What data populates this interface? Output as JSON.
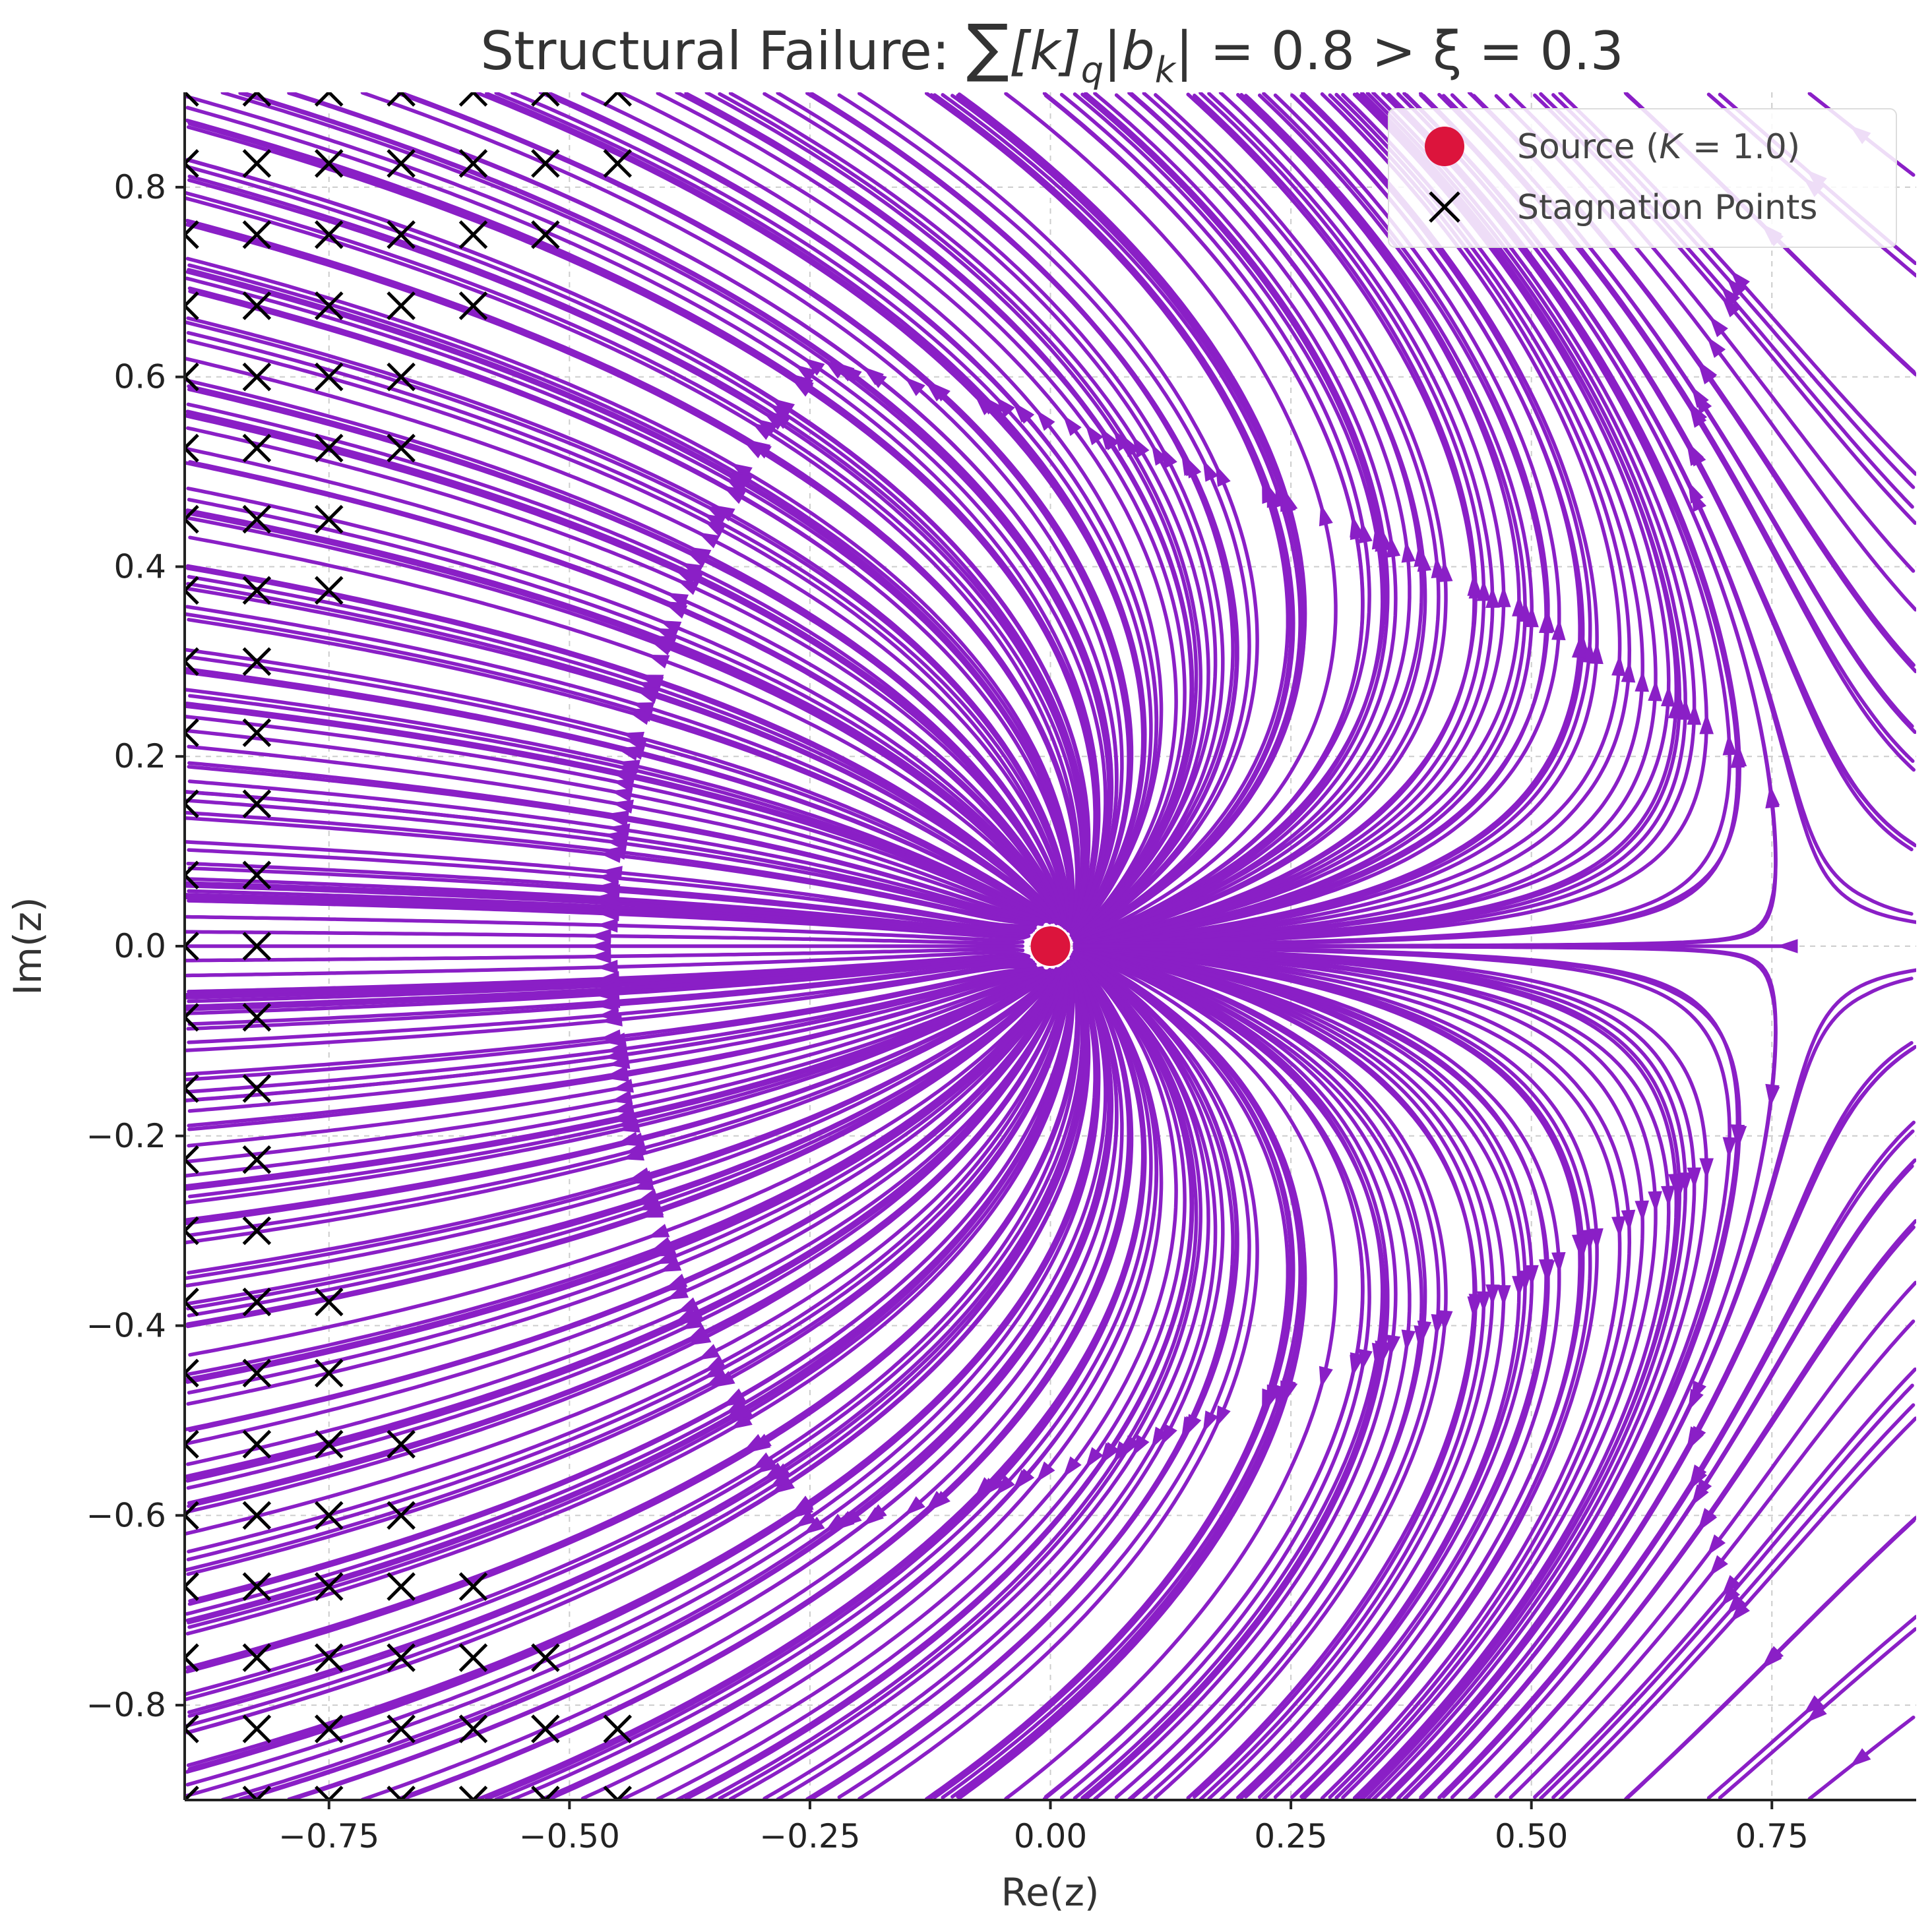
{
  "chart_data": {
    "type": "streamplot",
    "title": "Structural Failure: ∑[k]_q|b_k| = 0.8 > ξ = 0.3",
    "title_parts": {
      "prefix": "Structural Failure: ",
      "sum_symbol": "∑",
      "k_bracket": "[k]",
      "q_sub": "q",
      "b_part": "|b",
      "k_sub": "k",
      "rest": "| = 0.8 > ξ = 0.3"
    },
    "xlabel": "Re(z)",
    "ylabel": "Im(z)",
    "xlim": [
      -0.9,
      0.9
    ],
    "ylim": [
      -0.9,
      0.9
    ],
    "xticks": [
      -0.75,
      -0.5,
      -0.25,
      0.0,
      0.25,
      0.5,
      0.75
    ],
    "xtick_labels": [
      "−0.75",
      "−0.50",
      "−0.25",
      "0.00",
      "0.25",
      "0.50",
      "0.75"
    ],
    "yticks": [
      -0.8,
      -0.6,
      -0.4,
      -0.2,
      0.0,
      0.2,
      0.4,
      0.6,
      0.8
    ],
    "ytick_labels": [
      "−0.8",
      "−0.6",
      "−0.4",
      "−0.2",
      "0.0",
      "0.2",
      "0.4",
      "0.6",
      "0.8"
    ],
    "grid": true,
    "legend": {
      "placement": "upper-right",
      "entries": [
        {
          "label": "Source (K = 1.0)",
          "label_prefix": "Source (",
          "label_var": "K",
          "label_suffix": " = 1.0)",
          "marker": "circle",
          "color": "#dc143c"
        },
        {
          "label": "Stagnation Points",
          "marker": "x",
          "color": "#000000"
        }
      ]
    },
    "source": {
      "x": 0.0,
      "y": 0.0,
      "K": 1.0,
      "color": "#dc143c"
    },
    "stream_color": "#8a1fc6",
    "stagnation_points": [
      [
        -0.9,
        0.9
      ],
      [
        -0.825,
        0.9
      ],
      [
        -0.75,
        0.9
      ],
      [
        -0.675,
        0.9
      ],
      [
        -0.6,
        0.9
      ],
      [
        -0.525,
        0.9
      ],
      [
        -0.45,
        0.9
      ],
      [
        -0.9,
        0.825
      ],
      [
        -0.825,
        0.825
      ],
      [
        -0.75,
        0.825
      ],
      [
        -0.675,
        0.825
      ],
      [
        -0.6,
        0.825
      ],
      [
        -0.525,
        0.825
      ],
      [
        -0.45,
        0.825
      ],
      [
        -0.9,
        0.75
      ],
      [
        -0.825,
        0.75
      ],
      [
        -0.75,
        0.75
      ],
      [
        -0.675,
        0.75
      ],
      [
        -0.6,
        0.75
      ],
      [
        -0.525,
        0.75
      ],
      [
        -0.9,
        0.675
      ],
      [
        -0.825,
        0.675
      ],
      [
        -0.75,
        0.675
      ],
      [
        -0.675,
        0.675
      ],
      [
        -0.6,
        0.675
      ],
      [
        -0.9,
        0.6
      ],
      [
        -0.825,
        0.6
      ],
      [
        -0.75,
        0.6
      ],
      [
        -0.675,
        0.6
      ],
      [
        -0.9,
        0.525
      ],
      [
        -0.825,
        0.525
      ],
      [
        -0.75,
        0.525
      ],
      [
        -0.675,
        0.525
      ],
      [
        -0.9,
        0.45
      ],
      [
        -0.825,
        0.45
      ],
      [
        -0.75,
        0.45
      ],
      [
        -0.9,
        0.375
      ],
      [
        -0.825,
        0.375
      ],
      [
        -0.75,
        0.375
      ],
      [
        -0.9,
        0.3
      ],
      [
        -0.825,
        0.3
      ],
      [
        -0.9,
        0.225
      ],
      [
        -0.825,
        0.225
      ],
      [
        -0.9,
        0.15
      ],
      [
        -0.825,
        0.15
      ],
      [
        -0.9,
        0.075
      ],
      [
        -0.825,
        0.075
      ],
      [
        -0.9,
        0.0
      ],
      [
        -0.825,
        0.0
      ],
      [
        -0.9,
        -0.075
      ],
      [
        -0.825,
        -0.075
      ],
      [
        -0.9,
        -0.15
      ],
      [
        -0.825,
        -0.15
      ],
      [
        -0.9,
        -0.225
      ],
      [
        -0.825,
        -0.225
      ],
      [
        -0.9,
        -0.3
      ],
      [
        -0.825,
        -0.3
      ],
      [
        -0.9,
        -0.375
      ],
      [
        -0.825,
        -0.375
      ],
      [
        -0.75,
        -0.375
      ],
      [
        -0.9,
        -0.45
      ],
      [
        -0.825,
        -0.45
      ],
      [
        -0.75,
        -0.45
      ],
      [
        -0.9,
        -0.525
      ],
      [
        -0.825,
        -0.525
      ],
      [
        -0.75,
        -0.525
      ],
      [
        -0.675,
        -0.525
      ],
      [
        -0.9,
        -0.6
      ],
      [
        -0.825,
        -0.6
      ],
      [
        -0.75,
        -0.6
      ],
      [
        -0.675,
        -0.6
      ],
      [
        -0.9,
        -0.675
      ],
      [
        -0.825,
        -0.675
      ],
      [
        -0.75,
        -0.675
      ],
      [
        -0.675,
        -0.675
      ],
      [
        -0.6,
        -0.675
      ],
      [
        -0.9,
        -0.75
      ],
      [
        -0.825,
        -0.75
      ],
      [
        -0.75,
        -0.75
      ],
      [
        -0.675,
        -0.75
      ],
      [
        -0.6,
        -0.75
      ],
      [
        -0.525,
        -0.75
      ],
      [
        -0.9,
        -0.825
      ],
      [
        -0.825,
        -0.825
      ],
      [
        -0.75,
        -0.825
      ],
      [
        -0.675,
        -0.825
      ],
      [
        -0.6,
        -0.825
      ],
      [
        -0.525,
        -0.825
      ],
      [
        -0.45,
        -0.825
      ],
      [
        -0.9,
        -0.9
      ],
      [
        -0.825,
        -0.9
      ],
      [
        -0.75,
        -0.9
      ],
      [
        -0.675,
        -0.9
      ],
      [
        -0.6,
        -0.9
      ],
      [
        -0.525,
        -0.9
      ],
      [
        -0.45,
        -0.9
      ]
    ]
  }
}
